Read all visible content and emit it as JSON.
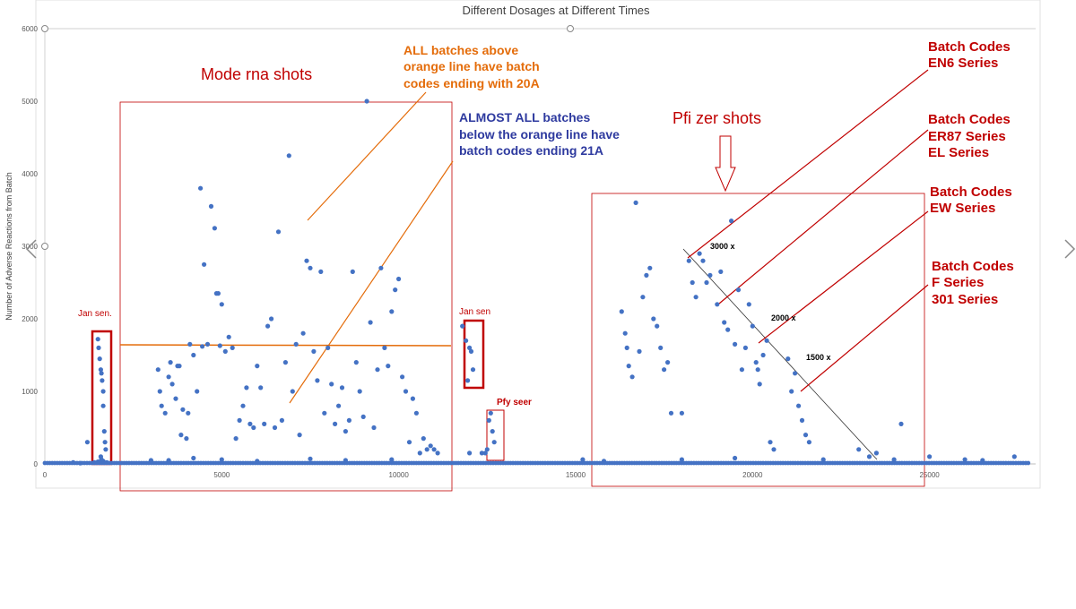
{
  "chart_data": {
    "type": "scatter",
    "title": "Different Dosages at Different Times",
    "ylabel": "Number of Adverse Reactions from Batch",
    "xlabel": "",
    "xlim": [
      0,
      28000
    ],
    "ylim": [
      0,
      6000
    ],
    "x_ticks": [
      "0",
      "5000",
      "10000",
      "15000",
      "20000",
      "25000"
    ],
    "y_ticks": [
      "0",
      "1000",
      "2000",
      "3000",
      "4000",
      "5000",
      "6000"
    ],
    "grid": false,
    "series": [
      {
        "points": [
          [
            1200,
            300
          ],
          [
            1500,
            1720
          ],
          [
            1520,
            1600
          ],
          [
            1550,
            1450
          ],
          [
            1580,
            1300
          ],
          [
            1600,
            1250
          ],
          [
            1620,
            1150
          ],
          [
            1650,
            1000
          ],
          [
            1650,
            800
          ],
          [
            1680,
            450
          ],
          [
            1700,
            300
          ],
          [
            1720,
            200
          ],
          [
            1580,
            100
          ],
          [
            1600,
            60
          ],
          [
            1650,
            40
          ],
          [
            1500,
            30
          ],
          [
            1400,
            20
          ],
          [
            1000,
            10
          ],
          [
            800,
            20
          ],
          [
            1750,
            20
          ],
          [
            3000,
            50
          ],
          [
            3200,
            1300
          ],
          [
            3250,
            1000
          ],
          [
            3300,
            800
          ],
          [
            3400,
            700
          ],
          [
            3500,
            1200
          ],
          [
            3550,
            1400
          ],
          [
            3600,
            1100
          ],
          [
            3700,
            900
          ],
          [
            3750,
            1350
          ],
          [
            3800,
            1350
          ],
          [
            3850,
            400
          ],
          [
            3900,
            750
          ],
          [
            4000,
            350
          ],
          [
            4050,
            700
          ],
          [
            4100,
            1650
          ],
          [
            4200,
            1500
          ],
          [
            4300,
            1000
          ],
          [
            4400,
            3800
          ],
          [
            4450,
            1620
          ],
          [
            4500,
            2750
          ],
          [
            4600,
            1650
          ],
          [
            4700,
            3550
          ],
          [
            4800,
            3250
          ],
          [
            4850,
            2350
          ],
          [
            4900,
            2350
          ],
          [
            4950,
            1630
          ],
          [
            5000,
            2200
          ],
          [
            5100,
            1550
          ],
          [
            5200,
            1750
          ],
          [
            5300,
            1600
          ],
          [
            5400,
            350
          ],
          [
            5500,
            600
          ],
          [
            5600,
            800
          ],
          [
            5700,
            1050
          ],
          [
            5800,
            550
          ],
          [
            5900,
            500
          ],
          [
            6000,
            1350
          ],
          [
            6100,
            1050
          ],
          [
            6200,
            550
          ],
          [
            6300,
            1900
          ],
          [
            6400,
            2000
          ],
          [
            6500,
            500
          ],
          [
            6600,
            3200
          ],
          [
            6700,
            600
          ],
          [
            6800,
            1400
          ],
          [
            6900,
            4250
          ],
          [
            7000,
            1000
          ],
          [
            7100,
            1650
          ],
          [
            7200,
            400
          ],
          [
            7300,
            1800
          ],
          [
            7400,
            2800
          ],
          [
            7500,
            2700
          ],
          [
            7600,
            1550
          ],
          [
            7700,
            1150
          ],
          [
            7800,
            2650
          ],
          [
            7900,
            700
          ],
          [
            8000,
            1600
          ],
          [
            8100,
            1100
          ],
          [
            8200,
            550
          ],
          [
            8300,
            800
          ],
          [
            8400,
            1050
          ],
          [
            8500,
            450
          ],
          [
            8600,
            600
          ],
          [
            8700,
            2650
          ],
          [
            8800,
            1400
          ],
          [
            8900,
            1000
          ],
          [
            9000,
            650
          ],
          [
            9100,
            5000
          ],
          [
            9200,
            1950
          ],
          [
            9300,
            500
          ],
          [
            9400,
            1300
          ],
          [
            9500,
            2700
          ],
          [
            9600,
            1600
          ],
          [
            9700,
            1350
          ],
          [
            9800,
            2100
          ],
          [
            9900,
            2400
          ],
          [
            10000,
            2550
          ],
          [
            10100,
            1200
          ],
          [
            10200,
            1000
          ],
          [
            10300,
            300
          ],
          [
            10400,
            900
          ],
          [
            10500,
            700
          ],
          [
            10600,
            150
          ],
          [
            10700,
            350
          ],
          [
            10800,
            200
          ],
          [
            10900,
            250
          ],
          [
            11000,
            200
          ],
          [
            11100,
            150
          ],
          [
            3500,
            50
          ],
          [
            4200,
            80
          ],
          [
            5000,
            60
          ],
          [
            6000,
            40
          ],
          [
            7500,
            70
          ],
          [
            8500,
            50
          ],
          [
            9800,
            60
          ],
          [
            12500,
            200
          ],
          [
            12550,
            600
          ],
          [
            12600,
            700
          ],
          [
            12650,
            450
          ],
          [
            12700,
            300
          ],
          [
            12450,
            150
          ],
          [
            12350,
            150
          ],
          [
            12000,
            150
          ],
          [
            11800,
            1900
          ],
          [
            11900,
            1700
          ],
          [
            12000,
            1600
          ],
          [
            12050,
            1550
          ],
          [
            12100,
            1300
          ],
          [
            11950,
            1150
          ],
          [
            15200,
            60
          ],
          [
            15800,
            40
          ],
          [
            16300,
            2100
          ],
          [
            16400,
            1800
          ],
          [
            16450,
            1600
          ],
          [
            16500,
            1350
          ],
          [
            16600,
            1200
          ],
          [
            16700,
            3600
          ],
          [
            16800,
            1550
          ],
          [
            16900,
            2300
          ],
          [
            17000,
            2600
          ],
          [
            17100,
            2700
          ],
          [
            17200,
            2000
          ],
          [
            17300,
            1900
          ],
          [
            17400,
            1600
          ],
          [
            17500,
            1300
          ],
          [
            17600,
            1400
          ],
          [
            17700,
            700
          ],
          [
            18000,
            700
          ],
          [
            18200,
            2800
          ],
          [
            18300,
            2500
          ],
          [
            18400,
            2300
          ],
          [
            18500,
            2900
          ],
          [
            18600,
            2800
          ],
          [
            18700,
            2500
          ],
          [
            18800,
            2600
          ],
          [
            19000,
            2200
          ],
          [
            19100,
            2650
          ],
          [
            19200,
            1950
          ],
          [
            19300,
            1850
          ],
          [
            19400,
            3350
          ],
          [
            19500,
            1650
          ],
          [
            19600,
            2400
          ],
          [
            19700,
            1300
          ],
          [
            19800,
            1600
          ],
          [
            19900,
            2200
          ],
          [
            20000,
            1900
          ],
          [
            20100,
            1400
          ],
          [
            20150,
            1300
          ],
          [
            20200,
            1100
          ],
          [
            20300,
            1500
          ],
          [
            20400,
            1700
          ],
          [
            20500,
            300
          ],
          [
            20600,
            200
          ],
          [
            21000,
            1450
          ],
          [
            21100,
            1000
          ],
          [
            21200,
            1250
          ],
          [
            21300,
            800
          ],
          [
            21400,
            600
          ],
          [
            21500,
            400
          ],
          [
            21600,
            300
          ],
          [
            23000,
            200
          ],
          [
            23300,
            100
          ],
          [
            23500,
            150
          ],
          [
            24200,
            550
          ],
          [
            25000,
            100
          ],
          [
            26500,
            50
          ],
          [
            27400,
            100
          ],
          [
            18000,
            60
          ],
          [
            19500,
            80
          ],
          [
            22000,
            60
          ],
          [
            24000,
            60
          ],
          [
            26000,
            60
          ]
        ]
      }
    ],
    "annotations": {
      "moderna_title": "Mode rna shots",
      "orange_note": [
        "ALL batches above",
        "orange line have batch",
        "codes ending with 20A"
      ],
      "blue_note": [
        "ALMOST ALL batches",
        "below the orange line have",
        "batch codes ending 21A"
      ],
      "pfizer_title": "Pfi zer shots",
      "janssen_left": "Jan sen.",
      "janssen_mid": "Jan sen",
      "pfy_seer": "Pfy seer",
      "en6": [
        "Batch Codes",
        "EN6 Series"
      ],
      "er87": [
        "Batch Codes",
        "ER87 Series",
        "EL Series"
      ],
      "ew": [
        "Batch Codes",
        "EW Series"
      ],
      "f301": [
        "Batch Codes",
        "F Series",
        "301 Series"
      ],
      "label_3000": "3000 x",
      "label_2000": "2000 x",
      "label_1500": "1500 x"
    }
  },
  "colors": {
    "point": "#4472c4",
    "red": "#c00000",
    "orange": "#e46c0a",
    "blue": "#2e3a9f"
  }
}
